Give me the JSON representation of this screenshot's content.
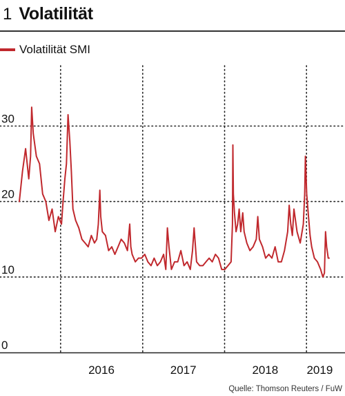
{
  "header": {
    "number": "1",
    "title": "Volatilität"
  },
  "legend": {
    "label": "Volatilität SMI"
  },
  "source": "Quelle: Thomson Reuters / FuW",
  "chart_data": {
    "type": "line",
    "title": "Volatilität",
    "xlabel": "",
    "ylabel": "",
    "ylim": [
      0,
      38
    ],
    "xlim": [
      "2015-07-01",
      "2019-04-15"
    ],
    "yticks": [
      "0",
      "10",
      "20",
      "30"
    ],
    "ytick_values": [
      0,
      10,
      20,
      30
    ],
    "xticks": [
      "2016",
      "2017",
      "2018",
      "2019"
    ],
    "xtick_dates": [
      "2016-07-01",
      "2017-07-01",
      "2018-07-01",
      "2019-03-01"
    ],
    "vgrid_dates": [
      "2016-01-01",
      "2017-01-01",
      "2018-01-01",
      "2019-01-01"
    ],
    "grid": "dotted",
    "color": "#c0282d",
    "series": [
      {
        "name": "Volatilität SMI",
        "x": [
          "2015-07-01",
          "2015-07-15",
          "2015-07-29",
          "2015-08-12",
          "2015-08-20",
          "2015-08-25",
          "2015-09-01",
          "2015-09-15",
          "2015-09-29",
          "2015-10-13",
          "2015-10-27",
          "2015-11-10",
          "2015-11-24",
          "2015-12-08",
          "2015-12-22",
          "2016-01-05",
          "2016-01-12",
          "2016-01-20",
          "2016-01-27",
          "2016-02-03",
          "2016-02-11",
          "2016-02-18",
          "2016-02-25",
          "2016-03-08",
          "2016-03-22",
          "2016-04-05",
          "2016-04-19",
          "2016-05-03",
          "2016-05-17",
          "2016-05-31",
          "2016-06-10",
          "2016-06-17",
          "2016-06-24",
          "2016-06-28",
          "2016-07-05",
          "2016-07-19",
          "2016-08-02",
          "2016-08-16",
          "2016-08-30",
          "2016-09-13",
          "2016-09-27",
          "2016-10-11",
          "2016-10-25",
          "2016-11-04",
          "2016-11-09",
          "2016-11-15",
          "2016-11-29",
          "2016-12-13",
          "2016-12-27",
          "2017-01-10",
          "2017-01-24",
          "2017-02-07",
          "2017-02-21",
          "2017-03-07",
          "2017-03-21",
          "2017-04-04",
          "2017-04-14",
          "2017-04-21",
          "2017-04-28",
          "2017-05-09",
          "2017-05-23",
          "2017-06-06",
          "2017-06-20",
          "2017-07-04",
          "2017-07-18",
          "2017-08-01",
          "2017-08-11",
          "2017-08-18",
          "2017-08-29",
          "2017-09-12",
          "2017-09-26",
          "2017-10-10",
          "2017-10-24",
          "2017-11-07",
          "2017-11-21",
          "2017-12-05",
          "2017-12-19",
          "2018-01-02",
          "2018-01-16",
          "2018-01-30",
          "2018-02-05",
          "2018-02-07",
          "2018-02-09",
          "2018-02-14",
          "2018-02-21",
          "2018-02-28",
          "2018-03-07",
          "2018-03-14",
          "2018-03-23",
          "2018-03-29",
          "2018-04-10",
          "2018-04-24",
          "2018-05-08",
          "2018-05-22",
          "2018-05-29",
          "2018-06-05",
          "2018-06-19",
          "2018-07-03",
          "2018-07-17",
          "2018-07-31",
          "2018-08-14",
          "2018-08-28",
          "2018-09-11",
          "2018-09-25",
          "2018-10-09",
          "2018-10-16",
          "2018-10-23",
          "2018-10-30",
          "2018-11-06",
          "2018-11-20",
          "2018-12-04",
          "2018-12-18",
          "2018-12-24",
          "2018-12-27",
          "2019-01-02",
          "2019-01-10",
          "2019-01-17",
          "2019-01-24",
          "2019-02-05",
          "2019-02-19",
          "2019-03-05",
          "2019-03-15",
          "2019-03-22",
          "2019-03-27",
          "2019-04-01",
          "2019-04-08",
          "2019-04-12"
        ],
        "values": [
          20,
          24,
          27,
          23,
          26,
          32.5,
          29,
          26,
          25,
          21,
          20,
          17.5,
          19,
          16,
          18,
          17,
          20,
          23,
          25,
          31.5,
          28,
          24,
          19,
          17.5,
          16.5,
          15,
          14.5,
          14,
          15.5,
          14.5,
          15,
          17,
          21.5,
          18,
          16,
          15.5,
          13.5,
          14,
          13,
          14,
          15,
          14.5,
          13.5,
          17,
          14,
          13,
          12,
          12.5,
          12.5,
          13,
          12,
          11.5,
          12.5,
          11.5,
          12,
          13,
          11,
          16.5,
          14,
          11,
          12,
          12,
          13.5,
          11.5,
          12,
          11,
          13.5,
          16.5,
          12,
          11.5,
          11.5,
          12,
          12.5,
          12,
          13,
          12.5,
          11,
          11,
          11.5,
          12,
          17,
          27.5,
          21,
          18.5,
          16,
          17,
          19,
          16,
          18.5,
          16,
          14.5,
          13.5,
          14,
          15,
          18,
          15,
          14,
          12.5,
          13,
          12.5,
          14,
          12,
          12,
          13.5,
          16,
          19.5,
          17,
          15.5,
          19,
          16,
          14.5,
          17,
          21,
          26,
          21,
          18,
          15.5,
          14,
          12.5,
          12,
          11,
          10,
          10.5,
          16,
          14,
          12.5,
          12.5
        ]
      }
    ]
  }
}
